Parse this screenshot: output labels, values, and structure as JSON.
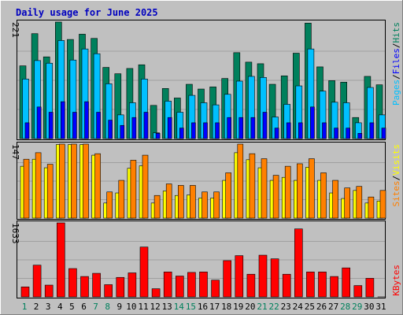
{
  "title": "Daily usage for June 2025",
  "colors": {
    "background": "#c0c0c0",
    "title": "#0000c0",
    "hits": "#00c0ff",
    "files": "#0000ff",
    "pages": "#00c0ff",
    "hits_legend": "#00c0ff",
    "sites": "#ff8000",
    "visits": "#ffff00",
    "kbytes": "#ff0000",
    "weekend_day": "#00805c",
    "hits_dark": "#00805c"
  },
  "chart_data": [
    {
      "type": "bar",
      "name": "hits-files-pages",
      "categories": [
        1,
        2,
        3,
        4,
        5,
        6,
        7,
        8,
        9,
        10,
        11,
        12,
        13,
        14,
        15,
        16,
        17,
        18,
        19,
        20,
        21,
        22,
        23,
        24,
        25,
        26,
        27,
        28,
        29,
        30,
        31
      ],
      "ymax_label": "221",
      "ymax": 221,
      "legend": [
        "Pages",
        "/",
        "Files",
        "/",
        "Hits"
      ],
      "series": [
        {
          "name": "Hits",
          "values": [
            138,
            199,
            155,
            221,
            188,
            198,
            190,
            135,
            123,
            133,
            140,
            63,
            95,
            77,
            103,
            94,
            98,
            114,
            163,
            145,
            142,
            103,
            119,
            162,
            219,
            136,
            110,
            107,
            40,
            118,
            102
          ]
        },
        {
          "name": "Files",
          "values": [
            113,
            148,
            143,
            186,
            149,
            170,
            161,
            104,
            45,
            68,
            113,
            11,
            71,
            50,
            82,
            68,
            64,
            84,
            109,
            118,
            116,
            41,
            65,
            100,
            170,
            90,
            69,
            68,
            30,
            97,
            45
          ]
        },
        {
          "name": "Pages",
          "values": [
            30,
            60,
            50,
            70,
            50,
            70,
            50,
            35,
            25,
            40,
            50,
            10,
            40,
            20,
            30,
            30,
            30,
            40,
            40,
            40,
            50,
            20,
            30,
            30,
            60,
            30,
            20,
            20,
            10,
            30,
            20
          ]
        }
      ]
    },
    {
      "type": "bar",
      "name": "visits-sites",
      "categories": [
        1,
        2,
        3,
        4,
        5,
        6,
        7,
        8,
        9,
        10,
        11,
        12,
        13,
        14,
        15,
        16,
        17,
        18,
        19,
        20,
        21,
        22,
        23,
        24,
        25,
        26,
        27,
        28,
        29,
        30,
        31
      ],
      "ymax_label": "147",
      "ymax": 147,
      "legend": [
        "Sites",
        "/",
        "Visits"
      ],
      "series": [
        {
          "name": "Visits",
          "values": [
            103,
            117,
            100,
            146,
            146,
            146,
            125,
            30,
            50,
            99,
            104,
            30,
            54,
            45,
            46,
            40,
            40,
            75,
            130,
            116,
            100,
            75,
            81,
            75,
            101,
            75,
            50,
            39,
            55,
            30,
            34
          ]
        },
        {
          "name": "Sites",
          "values": [
            117,
            130,
            107,
            147,
            147,
            147,
            128,
            52,
            75,
            115,
            125,
            45,
            68,
            65,
            65,
            52,
            52,
            90,
            147,
            128,
            118,
            85,
            103,
            108,
            118,
            90,
            75,
            60,
            63,
            42,
            55
          ]
        }
      ]
    },
    {
      "type": "bar",
      "name": "kbytes",
      "categories": [
        1,
        2,
        3,
        4,
        5,
        6,
        7,
        8,
        9,
        10,
        11,
        12,
        13,
        14,
        15,
        16,
        17,
        18,
        19,
        20,
        21,
        22,
        23,
        24,
        25,
        26,
        27,
        28,
        29,
        30,
        31
      ],
      "ymax_label": "1633",
      "ymax": 1633,
      "legend": [
        "KBytes"
      ],
      "series": [
        {
          "name": "KBytes",
          "values": [
            220,
            700,
            260,
            1633,
            625,
            450,
            520,
            270,
            430,
            530,
            1100,
            180,
            550,
            460,
            540,
            550,
            370,
            800,
            910,
            500,
            920,
            840,
            500,
            1500,
            550,
            550,
            450,
            640,
            250,
            410,
            1
          ]
        }
      ]
    }
  ]
}
